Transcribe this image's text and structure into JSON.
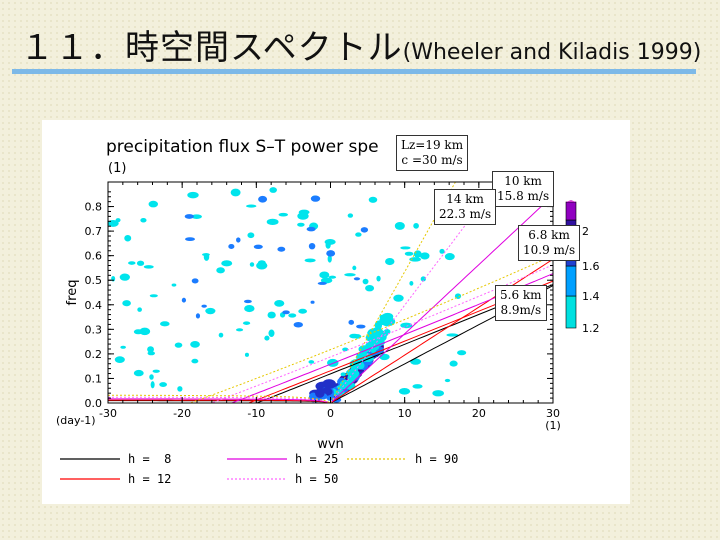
{
  "slide": {
    "title_main": "１１．時空間スペクトル",
    "title_ref": "(Wheeler and Kiladis 1999)"
  },
  "chart_data": {
    "type": "heatmap",
    "title": "precipitation flux S–T power spe",
    "panel_label": "(1)",
    "xlabel": "wvn",
    "ylabel": "freq",
    "x_unit_label": "(1)",
    "y_unit_label": "(day-1)",
    "xlim": [
      -30,
      30
    ],
    "ylim": [
      0,
      0.9
    ],
    "xticks": [
      "-30",
      "-20",
      "-10",
      "0",
      "10",
      "20",
      "30"
    ],
    "yticks": [
      "0.0",
      "0.1",
      "0.2",
      "0.3",
      "0.4",
      "0.5",
      "0.6",
      "0.7",
      "0.8"
    ],
    "colorbar": {
      "ticks": [
        "2",
        "1.6",
        "1.4",
        "1.2"
      ],
      "colors": [
        "#00e0e0",
        "#00a0ff",
        "#2040d0",
        "#3010a0",
        "#9000c0",
        "#d040d0"
      ]
    },
    "legend": {
      "position": "bottom",
      "items": [
        {
          "label": "h =  8",
          "color": "#000000",
          "dash": "solid"
        },
        {
          "label": "h = 12",
          "color": "#ff0000",
          "dash": "solid"
        },
        {
          "label": "h = 25",
          "color": "#e000e0",
          "dash": "solid"
        },
        {
          "label": "h = 50",
          "color": "#ff66ff",
          "dash": "dotted"
        },
        {
          "label": "h = 90",
          "color": "#e6c800",
          "dash": "dotted"
        }
      ]
    },
    "dispersion_h": [
      8,
      12,
      25,
      50,
      90
    ],
    "annotations": [
      {
        "lines": [
          "Lz=19 km",
          "c =30 m/s"
        ]
      },
      {
        "lines": [
          "10 km",
          "15.8 m/s"
        ]
      },
      {
        "lines": [
          "14 km",
          "22.3 m/s"
        ]
      },
      {
        "lines": [
          "6.8 km",
          "10.9 m/s"
        ]
      },
      {
        "lines": [
          "5.6 km",
          "8.9m/s"
        ]
      }
    ]
  }
}
